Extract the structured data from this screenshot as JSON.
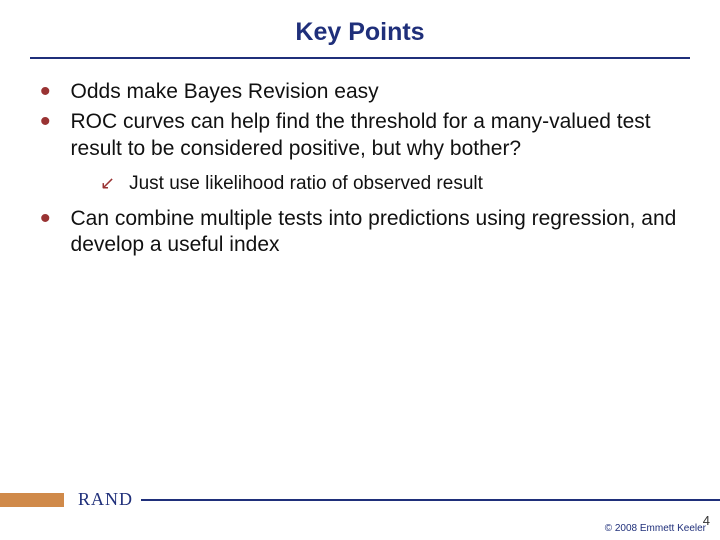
{
  "colors": {
    "title": "#1f2f7a",
    "rule": "#1f2f7a",
    "bullet": "#993333",
    "body": "#111111",
    "footer_block": "#d08a4a",
    "footer_text": "#1f2f7a",
    "footer_line": "#1f2f7a",
    "pagenum": "#333333",
    "copyright": "#1f2f7a"
  },
  "typography": {
    "title_size": 25,
    "body_size": 21,
    "sub_size": 19
  },
  "title": "Key Points",
  "bullets": [
    {
      "text": "Odds make Bayes Revision easy"
    },
    {
      "text": "ROC curves can help find the threshold for a many-valued test result to be considered positive, but why bother?",
      "sub": [
        {
          "text": "Just use likelihood ratio of observed result"
        }
      ]
    },
    {
      "text": "Can combine multiple tests into predictions using regression, and develop a useful index"
    }
  ],
  "footer": {
    "brand": "RAND",
    "block_width": 64
  },
  "page_number": "4",
  "copyright": "© 2008 Emmett Keeler"
}
